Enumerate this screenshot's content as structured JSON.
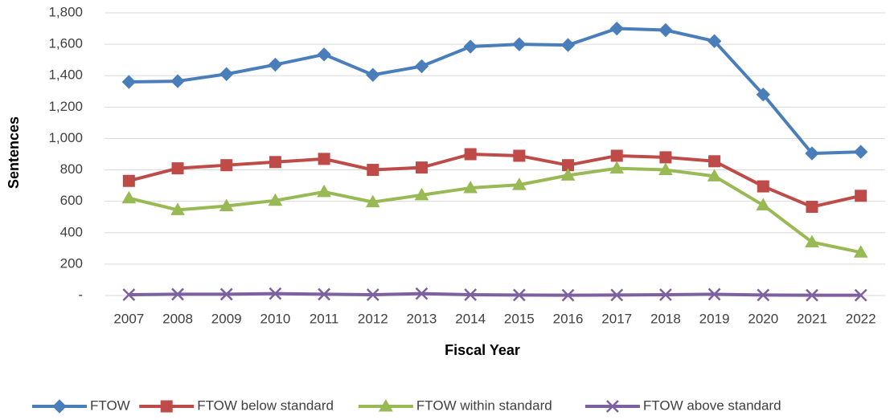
{
  "chart_data": {
    "type": "line",
    "x_label": "Fiscal Year",
    "y_label": "Sentences",
    "categories": [
      "2007",
      "2008",
      "2009",
      "2010",
      "2011",
      "2012",
      "2013",
      "2014",
      "2015",
      "2016",
      "2017",
      "2018",
      "2019",
      "2020",
      "2021",
      "2022"
    ],
    "series": [
      {
        "name": "FTOW",
        "color": "#4a7ebb",
        "marker": "diamond",
        "values": [
          1360,
          1365,
          1410,
          1470,
          1535,
          1405,
          1460,
          1585,
          1600,
          1595,
          1700,
          1690,
          1620,
          1280,
          905,
          915
        ]
      },
      {
        "name": "FTOW below standard",
        "color": "#be4b48",
        "marker": "square",
        "values": [
          730,
          810,
          830,
          850,
          870,
          800,
          815,
          900,
          890,
          830,
          890,
          880,
          855,
          695,
          565,
          635
        ]
      },
      {
        "name": "FTOW within standard",
        "color": "#98b954",
        "marker": "triangle",
        "values": [
          620,
          545,
          570,
          605,
          660,
          595,
          640,
          685,
          705,
          765,
          810,
          800,
          760,
          575,
          340,
          275
        ]
      },
      {
        "name": "FTOW above standard",
        "color": "#7d60a0",
        "marker": "x",
        "values": [
          5,
          8,
          8,
          12,
          8,
          5,
          12,
          5,
          3,
          2,
          3,
          5,
          8,
          3,
          2,
          2
        ]
      }
    ],
    "ylim": [
      0,
      1800
    ],
    "yticks": [
      {
        "value": 0,
        "label": "-"
      },
      200,
      400,
      600,
      800,
      {
        "value": 1000,
        "label": "1,000"
      },
      {
        "value": 1200,
        "label": "1,200"
      },
      {
        "value": 1400,
        "label": "1,400"
      },
      {
        "value": 1600,
        "label": "1,600"
      },
      {
        "value": 1800,
        "label": "1,800"
      }
    ],
    "grid": true,
    "legend": "bottom"
  }
}
